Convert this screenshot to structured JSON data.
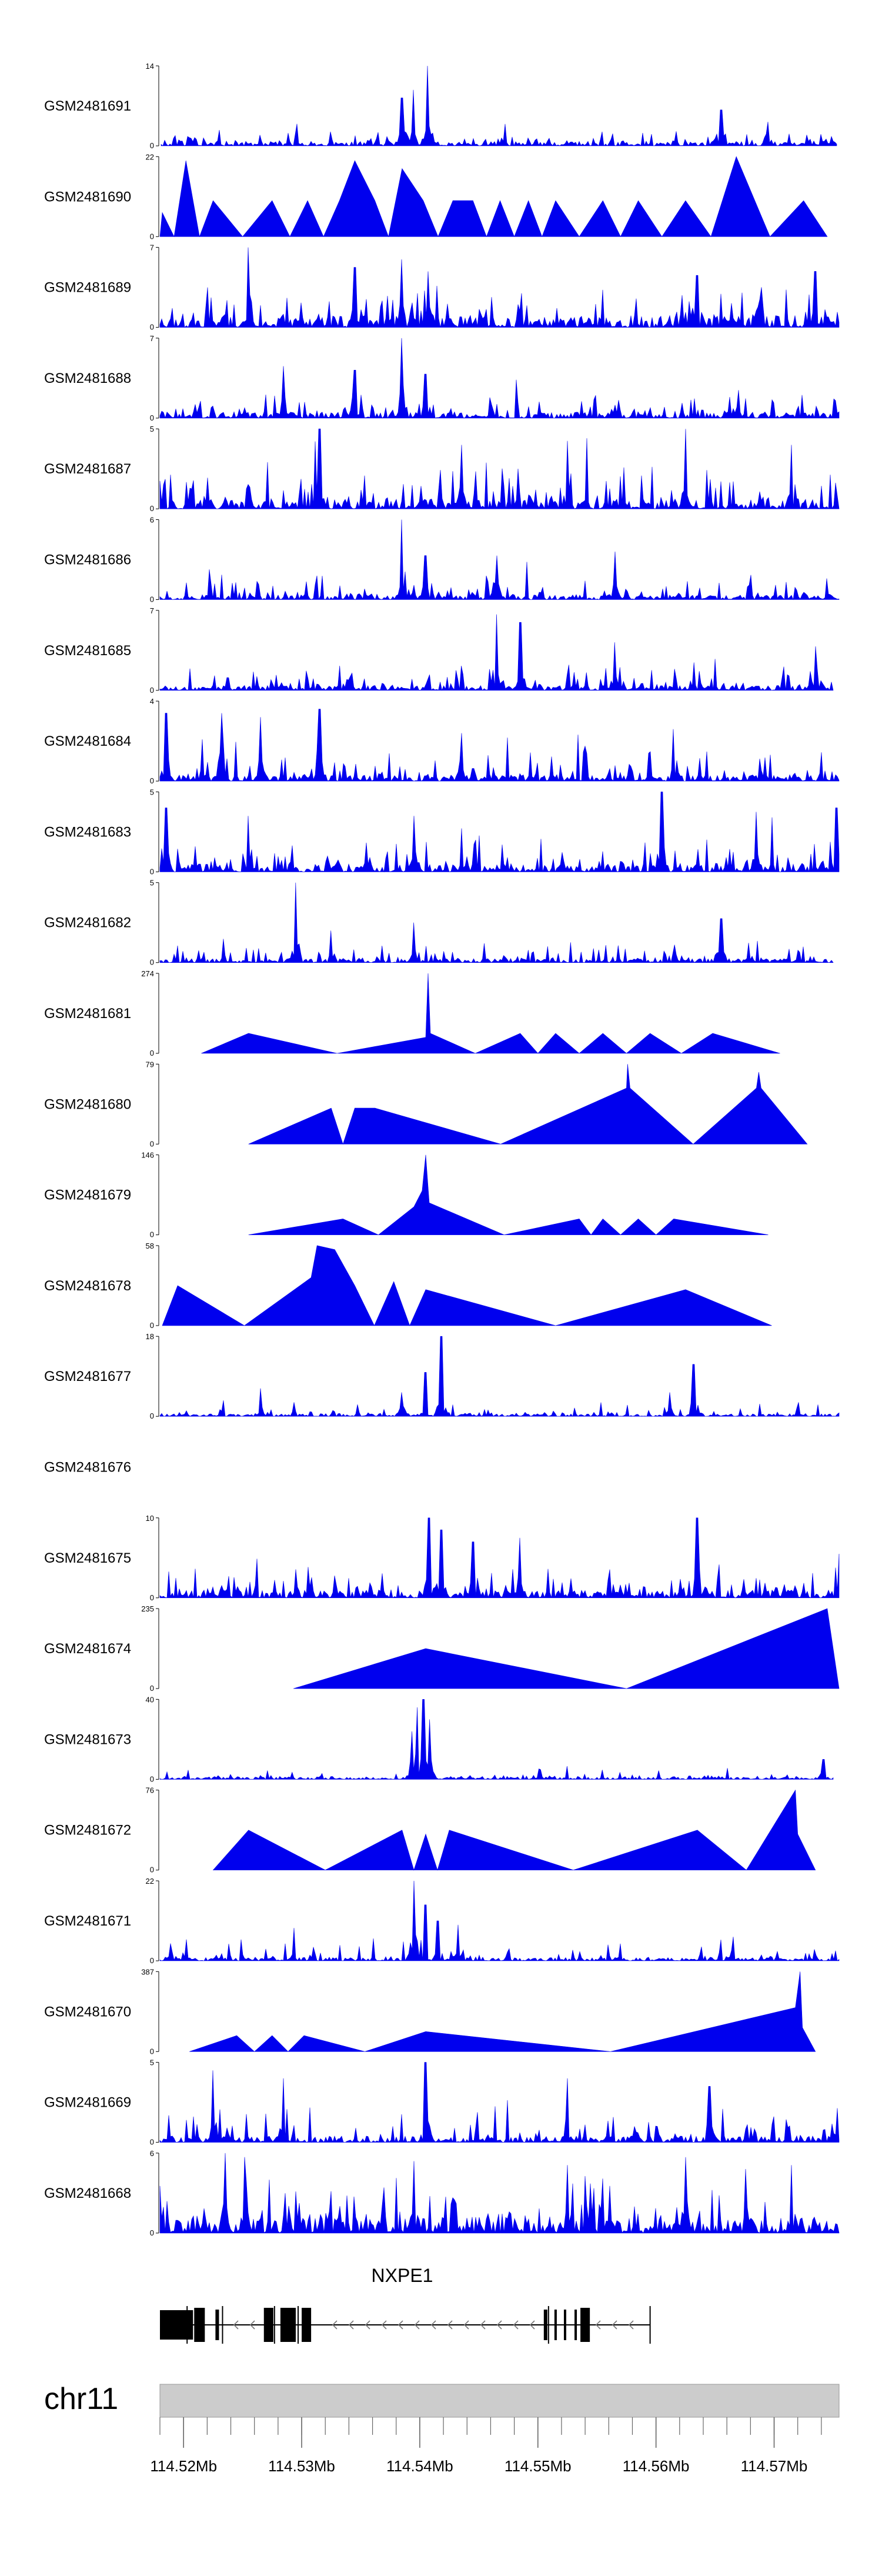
{
  "chart_data": {
    "type": "area",
    "genome": "chr11",
    "x_range_mb": [
      114.518,
      114.5755
    ],
    "gene": {
      "name": "NXPE1",
      "strand": "-",
      "start_mb": 114.518,
      "end_mb": 114.5595,
      "exons_mb": [
        [
          114.518,
          114.5208
        ],
        [
          114.5209,
          114.5218
        ],
        [
          114.5227,
          114.523
        ],
        [
          114.5268,
          114.5276
        ],
        [
          114.5282,
          114.5295
        ],
        [
          114.53,
          114.5308
        ],
        [
          114.5505,
          114.5508
        ],
        [
          114.5514,
          114.5516
        ],
        [
          114.5522,
          114.5524
        ],
        [
          114.5531,
          114.5533
        ],
        [
          114.5536,
          114.5544
        ]
      ]
    },
    "axis": {
      "ticks_mb": [
        114.52,
        114.53,
        114.54,
        114.55,
        114.56,
        114.57
      ],
      "tick_labels": [
        "114.52Mb",
        "114.53Mb",
        "114.54Mb",
        "114.55Mb",
        "114.56Mb",
        "114.57Mb"
      ]
    },
    "tracks": [
      {
        "name": "GSM2481691",
        "ymax": 14,
        "ymax_label": "14",
        "mode": "dense",
        "seed": 11,
        "base": 0.06,
        "spread": 0.18,
        "spike": 0.1,
        "start": 114.5181,
        "end": 114.5753,
        "peaks": [
          [
            114.5385,
            0.6
          ],
          [
            114.5395,
            0.7
          ],
          [
            114.5407,
            1.0
          ],
          [
            114.5655,
            0.45
          ],
          [
            114.5695,
            0.3
          ]
        ]
      },
      {
        "name": "GSM2481690",
        "ymax": 22,
        "ymax_label": "22",
        "mode": "sparse",
        "start": 114.518,
        "end": 114.5745,
        "peaks": [
          [
            114.5182,
            0.3
          ],
          [
            114.5202,
            0.95
          ],
          [
            114.5225,
            0.45
          ],
          [
            114.5275,
            0.45
          ],
          [
            114.5305,
            0.45
          ],
          [
            114.5332,
            0.45
          ],
          [
            114.5345,
            0.95
          ],
          [
            114.5362,
            0.45
          ],
          [
            114.5385,
            0.85
          ],
          [
            114.5403,
            0.45
          ],
          [
            114.5428,
            0.45
          ],
          [
            114.5445,
            0.45
          ],
          [
            114.5468,
            0.45
          ],
          [
            114.5492,
            0.45
          ],
          [
            114.5515,
            0.45
          ],
          [
            114.5555,
            0.45
          ],
          [
            114.5585,
            0.45
          ],
          [
            114.5625,
            0.45
          ],
          [
            114.5668,
            1.0
          ],
          [
            114.5725,
            0.45
          ]
        ]
      },
      {
        "name": "GSM2481689",
        "ymax": 7,
        "ymax_label": "7",
        "mode": "dense",
        "seed": 23,
        "base": 0.15,
        "spread": 0.45,
        "spike": 0.3,
        "start": 114.518,
        "end": 114.5755,
        "peaks": [
          [
            114.5255,
            1.0
          ],
          [
            114.5345,
            0.75
          ],
          [
            114.5385,
            0.85
          ],
          [
            114.5407,
            0.7
          ],
          [
            114.5635,
            0.65
          ],
          [
            114.5735,
            0.7
          ]
        ]
      },
      {
        "name": "GSM2481688",
        "ymax": 7,
        "ymax_label": "7",
        "mode": "dense",
        "seed": 31,
        "base": 0.08,
        "spread": 0.3,
        "spike": 0.2,
        "start": 114.518,
        "end": 114.5755,
        "peaks": [
          [
            114.5285,
            0.65
          ],
          [
            114.5345,
            0.6
          ],
          [
            114.5385,
            1.0
          ],
          [
            114.5405,
            0.55
          ],
          [
            114.567,
            0.35
          ]
        ]
      },
      {
        "name": "GSM2481687",
        "ymax": 5,
        "ymax_label": "5",
        "mode": "dense",
        "seed": 47,
        "base": 0.12,
        "spread": 0.55,
        "spike": 0.35,
        "start": 114.518,
        "end": 114.5755,
        "peaks": [
          [
            114.5315,
            1.0
          ],
          [
            114.5435,
            0.8
          ],
          [
            114.5525,
            0.85
          ],
          [
            114.5625,
            1.0
          ],
          [
            114.5715,
            0.8
          ]
        ]
      },
      {
        "name": "GSM2481686",
        "ymax": 6,
        "ymax_label": "6",
        "mode": "dense",
        "seed": 53,
        "base": 0.06,
        "spread": 0.32,
        "spike": 0.2,
        "start": 114.518,
        "end": 114.5755,
        "peaks": [
          [
            114.5385,
            1.0
          ],
          [
            114.5405,
            0.55
          ],
          [
            114.5465,
            0.55
          ],
          [
            114.5565,
            0.6
          ]
        ]
      },
      {
        "name": "GSM2481685",
        "ymax": 7,
        "ymax_label": "7",
        "mode": "dense",
        "seed": 61,
        "base": 0.06,
        "spread": 0.3,
        "spike": 0.2,
        "start": 114.518,
        "end": 114.575,
        "peaks": [
          [
            114.5465,
            0.95
          ],
          [
            114.5485,
            0.85
          ],
          [
            114.5565,
            0.6
          ],
          [
            114.5735,
            0.55
          ]
        ]
      },
      {
        "name": "GSM2481684",
        "ymax": 4,
        "ymax_label": "4",
        "mode": "dense",
        "seed": 71,
        "base": 0.08,
        "spread": 0.4,
        "spike": 0.3,
        "start": 114.518,
        "end": 114.5755,
        "peaks": [
          [
            114.5185,
            0.85
          ],
          [
            114.5232,
            0.85
          ],
          [
            114.5265,
            0.8
          ],
          [
            114.5315,
            0.9
          ],
          [
            114.5435,
            0.6
          ],
          [
            114.5615,
            0.65
          ]
        ]
      },
      {
        "name": "GSM2481683",
        "ymax": 5,
        "ymax_label": "5",
        "mode": "dense",
        "seed": 83,
        "base": 0.1,
        "spread": 0.45,
        "spike": 0.3,
        "start": 114.518,
        "end": 114.5755,
        "peaks": [
          [
            114.5185,
            0.8
          ],
          [
            114.5255,
            0.7
          ],
          [
            114.5395,
            0.7
          ],
          [
            114.5605,
            1.0
          ],
          [
            114.5685,
            0.75
          ],
          [
            114.5753,
            0.8
          ]
        ]
      },
      {
        "name": "GSM2481682",
        "ymax": 5,
        "ymax_label": "5",
        "mode": "dense",
        "seed": 97,
        "base": 0.05,
        "spread": 0.28,
        "spike": 0.2,
        "start": 114.518,
        "end": 114.575,
        "peaks": [
          [
            114.5295,
            1.0
          ],
          [
            114.5325,
            0.4
          ],
          [
            114.5395,
            0.5
          ],
          [
            114.5655,
            0.55
          ]
        ]
      },
      {
        "name": "GSM2481681",
        "ymax": 274,
        "ymax_label": "274",
        "mode": "sparse",
        "start": 114.5215,
        "end": 114.5705,
        "peaks": [
          [
            114.5255,
            0.25
          ],
          [
            114.5405,
            0.2
          ],
          [
            114.5407,
            1.0
          ],
          [
            114.5409,
            0.25
          ],
          [
            114.5485,
            0.25
          ],
          [
            114.5515,
            0.25
          ],
          [
            114.5555,
            0.25
          ],
          [
            114.5595,
            0.25
          ],
          [
            114.5648,
            0.25
          ]
        ]
      },
      {
        "name": "GSM2481680",
        "ymax": 79,
        "ymax_label": "79",
        "mode": "sparse",
        "start": 114.5255,
        "end": 114.5728,
        "peaks": [
          [
            114.5325,
            0.45
          ],
          [
            114.5345,
            0.45
          ],
          [
            114.5362,
            0.45
          ],
          [
            114.5575,
            0.7
          ],
          [
            114.5576,
            1.0
          ],
          [
            114.5578,
            0.7
          ],
          [
            114.5685,
            0.7
          ],
          [
            114.5687,
            0.9
          ],
          [
            114.5689,
            0.7
          ]
        ]
      },
      {
        "name": "GSM2481679",
        "ymax": 146,
        "ymax_label": "146",
        "mode": "sparse",
        "start": 114.5255,
        "end": 114.5695,
        "peaks": [
          [
            114.5335,
            0.2
          ],
          [
            114.5395,
            0.35
          ],
          [
            114.5402,
            0.55
          ],
          [
            114.5405,
            1.0
          ],
          [
            114.5408,
            0.4
          ],
          [
            114.5535,
            0.2
          ],
          [
            114.5555,
            0.2
          ],
          [
            114.5585,
            0.2
          ],
          [
            114.5615,
            0.2
          ]
        ]
      },
      {
        "name": "GSM2481678",
        "ymax": 58,
        "ymax_label": "58",
        "mode": "sparse",
        "start": 114.5182,
        "end": 114.5698,
        "peaks": [
          [
            114.5195,
            0.5
          ],
          [
            114.5308,
            0.6
          ],
          [
            114.5313,
            1.0
          ],
          [
            114.5328,
            0.95
          ],
          [
            114.5345,
            0.5
          ],
          [
            114.5378,
            0.55
          ],
          [
            114.5405,
            0.45
          ],
          [
            114.5625,
            0.45
          ]
        ]
      },
      {
        "name": "GSM2481677",
        "ymax": 18,
        "ymax_label": "18",
        "mode": "dense",
        "seed": 101,
        "base": 0.03,
        "spread": 0.1,
        "spike": 0.12,
        "start": 114.518,
        "end": 114.5755,
        "peaks": [
          [
            114.5265,
            0.35
          ],
          [
            114.5385,
            0.3
          ],
          [
            114.5405,
            0.55
          ],
          [
            114.5418,
            1.0
          ],
          [
            114.5612,
            0.3
          ],
          [
            114.5632,
            0.65
          ]
        ]
      },
      {
        "name": "GSM2481676",
        "ymax": 0,
        "ymax_label": "",
        "mode": "empty",
        "peaks": []
      },
      {
        "name": "GSM2481675",
        "ymax": 10,
        "ymax_label": "10",
        "mode": "dense",
        "seed": 113,
        "base": 0.1,
        "spread": 0.3,
        "spike": 0.25,
        "start": 114.518,
        "end": 114.5755,
        "peaks": [
          [
            114.5408,
            1.0
          ],
          [
            114.5418,
            0.85
          ],
          [
            114.5445,
            0.7
          ],
          [
            114.5485,
            0.75
          ],
          [
            114.5635,
            1.0
          ],
          [
            114.5755,
            0.55
          ]
        ]
      },
      {
        "name": "GSM2481674",
        "ymax": 235,
        "ymax_label": "235",
        "mode": "sparse",
        "start": 114.5293,
        "end": 114.5755,
        "peaks": [
          [
            114.5405,
            0.5
          ],
          [
            114.5745,
            1.0
          ]
        ]
      },
      {
        "name": "GSM2481673",
        "ymax": 40,
        "ymax_label": "40",
        "mode": "dense",
        "seed": 127,
        "base": 0.03,
        "spread": 0.06,
        "spike": 0.08,
        "start": 114.518,
        "end": 114.575,
        "peaks": [
          [
            114.5393,
            0.6
          ],
          [
            114.5398,
            0.9
          ],
          [
            114.5403,
            1.0
          ],
          [
            114.5408,
            0.75
          ],
          [
            114.5742,
            0.25
          ]
        ]
      },
      {
        "name": "GSM2481672",
        "ymax": 76,
        "ymax_label": "76",
        "mode": "sparse",
        "start": 114.5225,
        "end": 114.5735,
        "peaks": [
          [
            114.5255,
            0.5
          ],
          [
            114.5385,
            0.5
          ],
          [
            114.5405,
            0.45
          ],
          [
            114.5425,
            0.5
          ],
          [
            114.5635,
            0.5
          ],
          [
            114.5718,
            1.0
          ],
          [
            114.572,
            0.45
          ]
        ]
      },
      {
        "name": "GSM2481671",
        "ymax": 22,
        "ymax_label": "22",
        "mode": "dense",
        "seed": 139,
        "base": 0.04,
        "spread": 0.14,
        "spike": 0.2,
        "start": 114.518,
        "end": 114.5755,
        "peaks": [
          [
            114.5395,
            1.0
          ],
          [
            114.5405,
            0.7
          ],
          [
            114.5415,
            0.5
          ],
          [
            114.5432,
            0.45
          ],
          [
            114.5665,
            0.3
          ]
        ]
      },
      {
        "name": "GSM2481670",
        "ymax": 387,
        "ymax_label": "387",
        "mode": "sparse",
        "start": 114.5205,
        "end": 114.5735,
        "peaks": [
          [
            114.5245,
            0.2
          ],
          [
            114.5275,
            0.2
          ],
          [
            114.5302,
            0.2
          ],
          [
            114.5405,
            0.25
          ],
          [
            114.5718,
            0.55
          ],
          [
            114.5722,
            1.0
          ],
          [
            114.5724,
            0.3
          ]
        ]
      },
      {
        "name": "GSM2481669",
        "ymax": 5,
        "ymax_label": "5",
        "mode": "dense",
        "seed": 151,
        "base": 0.08,
        "spread": 0.4,
        "spike": 0.3,
        "start": 114.518,
        "end": 114.5755,
        "peaks": [
          [
            114.5225,
            0.9
          ],
          [
            114.5285,
            0.8
          ],
          [
            114.5405,
            1.0
          ],
          [
            114.5525,
            0.8
          ],
          [
            114.5645,
            0.7
          ]
        ]
      },
      {
        "name": "GSM2481668",
        "ymax": 6,
        "ymax_label": "6",
        "mode": "dense",
        "seed": 163,
        "base": 0.2,
        "spread": 0.6,
        "spike": 0.35,
        "start": 114.518,
        "end": 114.5755,
        "peaks": [
          [
            114.5235,
            1.0
          ],
          [
            114.5252,
            0.95
          ],
          [
            114.5395,
            0.9
          ],
          [
            114.5525,
            0.85
          ],
          [
            114.5625,
            0.95
          ],
          [
            114.5715,
            0.85
          ]
        ]
      }
    ]
  },
  "colors": {
    "track_fill": "#0000ee",
    "axis_bar": "#cccccc",
    "gene_fill": "#000000"
  }
}
